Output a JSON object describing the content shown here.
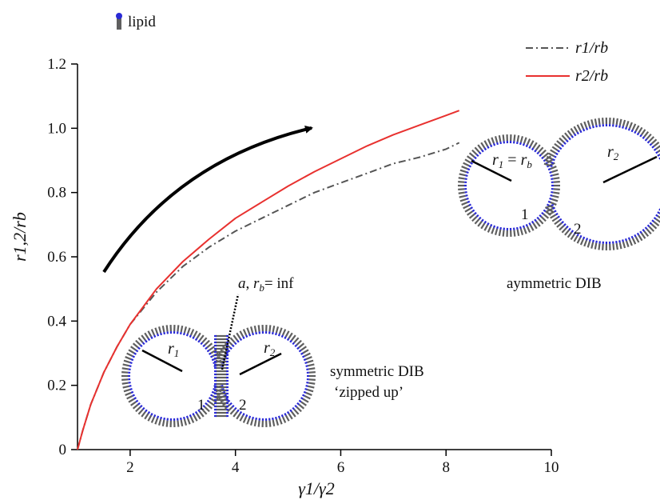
{
  "chart_data": {
    "type": "line",
    "xlabel": "γ1/γ2",
    "ylabel": "r1,2/rb",
    "xlim": [
      1,
      10
    ],
    "ylim": [
      0,
      1.2
    ],
    "x_ticks": [
      "2",
      "4",
      "6",
      "8",
      "10"
    ],
    "y_ticks": [
      "0",
      "0.2",
      "0.4",
      "0.6",
      "0.8",
      "1.0",
      "1.2"
    ],
    "legend_position": "top-right",
    "series": [
      {
        "name": "r1/rb",
        "style": "dash-dot",
        "color": "#555555",
        "x": [
          1.0,
          1.1,
          1.25,
          1.5,
          1.75,
          2.0,
          2.25,
          2.5,
          3.0,
          3.5,
          4.0,
          4.5,
          5.0,
          5.5,
          6.0,
          6.5,
          7.0,
          7.5,
          8.0,
          8.25
        ],
        "y": [
          0.0,
          0.06,
          0.14,
          0.24,
          0.32,
          0.39,
          0.44,
          0.49,
          0.57,
          0.63,
          0.68,
          0.72,
          0.76,
          0.8,
          0.83,
          0.86,
          0.89,
          0.91,
          0.935,
          0.955
        ]
      },
      {
        "name": "r2/rb",
        "style": "solid",
        "color": "#e8312f",
        "x": [
          1.0,
          1.1,
          1.25,
          1.5,
          1.75,
          2.0,
          2.25,
          2.5,
          3.0,
          3.5,
          4.0,
          4.5,
          5.0,
          5.5,
          6.0,
          6.5,
          7.0,
          7.5,
          8.0,
          8.25
        ],
        "y": [
          0.0,
          0.06,
          0.14,
          0.24,
          0.32,
          0.39,
          0.445,
          0.5,
          0.585,
          0.655,
          0.72,
          0.77,
          0.82,
          0.865,
          0.905,
          0.945,
          0.98,
          1.01,
          1.04,
          1.055
        ]
      }
    ],
    "annotations": {
      "lipid": "lipid",
      "symmetric_title_1": "symmetric DIB",
      "symmetric_title_2": "‘zipped up’",
      "asymmetric_title": "aymmetric DIB",
      "a_label": "a",
      "rb_inf": "= inf",
      "droplet_1": "1",
      "droplet_2": "2"
    },
    "colors": {
      "lipid_head": "#2a2ad6",
      "lipid_tail": "#5f5f5f",
      "arrow": "#000000"
    }
  }
}
